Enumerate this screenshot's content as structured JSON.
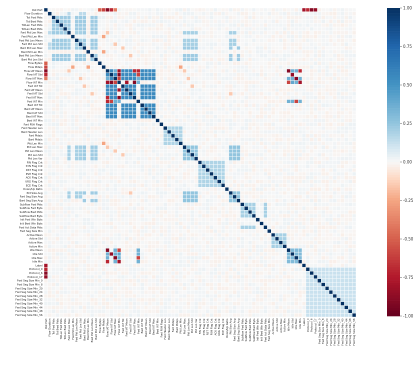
{
  "chart_data": {
    "type": "heatmap",
    "title": "",
    "xlabel": "",
    "ylabel": "",
    "labels": [
      "Dst Port",
      "Flow Duration",
      "Tot Fwd Pkts",
      "Tot Bwd Pkts",
      "TotLen Fwd Pkts",
      "TotLen Bwd Pkts",
      "Fwd Pkt Len Max",
      "Fwd Pkt Len Min",
      "Fwd Pkt Len Mean",
      "Fwd Pkt Len Std",
      "Bwd Pkt Len Max",
      "Bwd Pkt Len Min",
      "Bwd Pkt Len Mean",
      "Bwd Pkt Len Std",
      "Flow Byts/s",
      "Flow Pkts/s",
      "Flow IAT Mean",
      "Flow IAT Std",
      "Flow IAT Max",
      "Flow IAT Min",
      "Fwd IAT Tot",
      "Fwd IAT Mean",
      "Fwd IAT Std",
      "Fwd IAT Max",
      "Fwd IAT Min",
      "Bwd IAT Tot",
      "Bwd IAT Mean",
      "Bwd IAT Std",
      "Bwd IAT Max",
      "Bwd IAT Min",
      "Fwd PSH Flags",
      "Fwd Header Len",
      "Bwd Header Len",
      "Fwd Pkts/s",
      "Bwd Pkts/s",
      "Pkt Len Min",
      "Pkt Len Max",
      "Pkt Len Mean",
      "Pkt Len Std",
      "Pkt Len Var",
      "FIN Flag Cnt",
      "SYN Flag Cnt",
      "RST Flag Cnt",
      "PSH Flag Cnt",
      "ACK Flag Cnt",
      "URG Flag Cnt",
      "ECE Flag Cnt",
      "Down/Up Ratio",
      "Pkt Size Avg",
      "Fwd Seg Size Avg",
      "Bwd Seg Size Avg",
      "Subflow Fwd Pkts",
      "Subflow Fwd Byts",
      "Subflow Bwd Pkts",
      "Subflow Bwd Byts",
      "Init Fwd Win Byts",
      "Init Bwd Win Byts",
      "Fwd Act Data Pkts",
      "Fwd Seg Size Min",
      "Active Mean",
      "Active Std",
      "Active Max",
      "Active Min",
      "Idle Mean",
      "Idle Std",
      "Idle Max",
      "Idle Min",
      "Label",
      "Protocol_0",
      "Protocol_6",
      "Protocol_17",
      "Fwd Seg Size Min_0",
      "Fwd Seg Size Min_8",
      "Fwd Seg Size Min_20",
      "Fwd Seg Size Min_24",
      "Fwd Seg Size Min_28",
      "Fwd Seg Size Min_32",
      "Fwd Seg Size Min_40",
      "Fwd Seg Size Min_44",
      "Fwd Seg Size Min_48",
      "Fwd Seg Size Min_56"
    ],
    "colorbar": {
      "colormap": "RdBu_r",
      "range": [
        -1.0,
        1.0
      ],
      "ticks": [
        -1.0,
        -0.75,
        -0.5,
        -0.25,
        0.0,
        0.25,
        0.5,
        0.75,
        1.0
      ]
    },
    "groups": [
      {
        "members": [
          2,
          3,
          4,
          5,
          6,
          8,
          9,
          10,
          12,
          13
        ],
        "r": 0.22
      },
      {
        "members": [
          6,
          8,
          9,
          36,
          37,
          38,
          39,
          48,
          49
        ],
        "r": 0.2
      },
      {
        "members": [
          10,
          12,
          13,
          36,
          37,
          38,
          39,
          48,
          50
        ],
        "r": 0.22
      },
      {
        "members": [
          16,
          17,
          18,
          20,
          21,
          22,
          23,
          25,
          26,
          27,
          28
        ],
        "r": 0.55
      },
      {
        "members": [
          16,
          18,
          19,
          24,
          63,
          64,
          65,
          66
        ],
        "r": 0.35
      },
      {
        "members": [
          31,
          32,
          33,
          34,
          35
        ],
        "r": 0.18
      },
      {
        "members": [
          36,
          37,
          38,
          39,
          48,
          49,
          50
        ],
        "r": 0.25
      },
      {
        "members": [
          40,
          41,
          42,
          43,
          44,
          45,
          46
        ],
        "r": 0.18
      },
      {
        "members": [
          51,
          52,
          53,
          54,
          57
        ],
        "r": 0.2
      },
      {
        "members": [
          59,
          60,
          61,
          62
        ],
        "r": 0.2
      },
      {
        "members": [
          63,
          64,
          65,
          66
        ],
        "r": 0.3
      },
      {
        "members": [
          68,
          69,
          70,
          71,
          72,
          73,
          74,
          75,
          76,
          77,
          78,
          79,
          80
        ],
        "r": 0.12
      }
    ],
    "pairs": [
      [
        0,
        67,
        -0.8
      ],
      [
        0,
        68,
        -0.7
      ],
      [
        0,
        69,
        -0.9
      ],
      [
        0,
        70,
        -0.85
      ],
      [
        0,
        14,
        -0.5
      ],
      [
        0,
        15,
        -0.6
      ],
      [
        0,
        16,
        -0.9
      ],
      [
        0,
        17,
        -0.7
      ],
      [
        0,
        18,
        -0.4
      ],
      [
        1,
        6,
        0.15
      ],
      [
        1,
        9,
        0.15
      ],
      [
        1,
        10,
        0.15
      ],
      [
        16,
        19,
        -0.8
      ],
      [
        16,
        24,
        -0.7
      ],
      [
        17,
        19,
        -0.9
      ],
      [
        18,
        19,
        -0.6
      ],
      [
        19,
        21,
        -0.8
      ],
      [
        19,
        23,
        -0.9
      ],
      [
        16,
        23,
        -0.7
      ],
      [
        17,
        24,
        -0.6
      ],
      [
        63,
        16,
        -0.9
      ],
      [
        64,
        17,
        -0.85
      ],
      [
        65,
        18,
        -0.9
      ],
      [
        66,
        19,
        -0.8
      ],
      [
        63,
        19,
        -0.6
      ],
      [
        66,
        16,
        -0.7
      ],
      [
        64,
        19,
        0.4
      ],
      [
        65,
        24,
        -0.6
      ],
      [
        15,
        7,
        -0.25
      ],
      [
        15,
        11,
        -0.25
      ],
      [
        15,
        35,
        -0.25
      ],
      [
        6,
        16,
        -0.15
      ],
      [
        9,
        18,
        -0.15
      ],
      [
        10,
        20,
        -0.15
      ],
      [
        12,
        22,
        -0.15
      ],
      [
        36,
        16,
        -0.15
      ],
      [
        37,
        18,
        -0.15
      ],
      [
        38,
        20,
        -0.15
      ],
      [
        48,
        22,
        -0.15
      ]
    ]
  }
}
